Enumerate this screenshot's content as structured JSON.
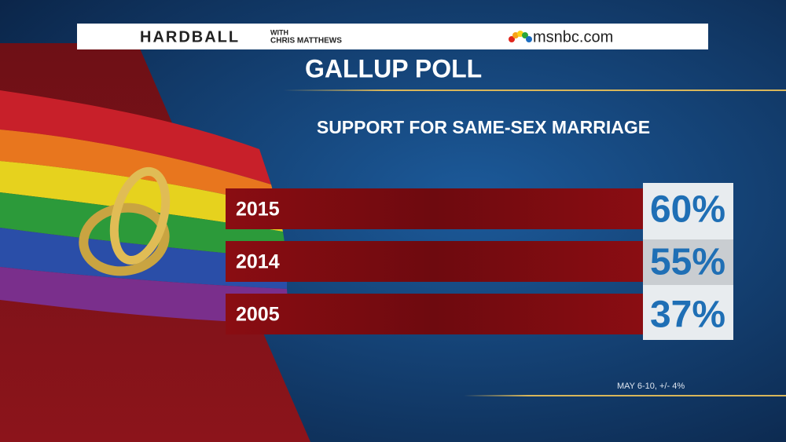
{
  "header": {
    "show": "HARDBALL",
    "show_with": "WITH",
    "show_host": "CHRIS MATTHEWS",
    "network": "msnbc.com"
  },
  "title": "GALLUP POLL",
  "subtitle": "SUPPORT FOR SAME-SEX MARRIAGE",
  "rows": [
    {
      "year": "2015",
      "value": "60%"
    },
    {
      "year": "2014",
      "value": "55%"
    },
    {
      "year": "2005",
      "value": "37%"
    }
  ],
  "footnote": "MAY 6-10, +/- 4%"
}
